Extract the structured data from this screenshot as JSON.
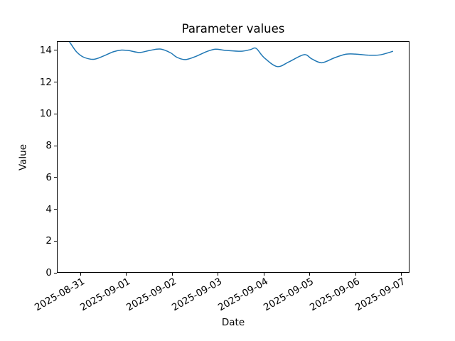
{
  "chart_data": {
    "type": "line",
    "title": "Parameter values",
    "xlabel": "Date",
    "ylabel": "Value",
    "x_tick_labels": [
      "2025-08-31",
      "2025-09-01",
      "2025-09-02",
      "2025-09-03",
      "2025-09-04",
      "2025-09-05",
      "2025-09-06",
      "2025-09-07"
    ],
    "x_ticks_days": [
      0,
      1,
      2,
      3,
      4,
      5,
      6,
      7
    ],
    "x_days_since": "2025-08-31",
    "y_ticks": [
      0,
      2,
      4,
      6,
      8,
      10,
      12,
      14
    ],
    "y_tick_labels": [
      "0",
      "2",
      "4",
      "6",
      "8",
      "10",
      "12",
      "14"
    ],
    "ylim": [
      0,
      14.58
    ],
    "xlim_days": [
      -0.516,
      7.173
    ],
    "grid": false,
    "legend": false,
    "line_color": "#1f77b4",
    "line_width": 1.5,
    "text_color": "#000000",
    "background_color": "#ffffff",
    "series": [
      {
        "name": "parameter-values",
        "x_days": [
          -0.36,
          -0.24,
          -0.1,
          0.05,
          0.27,
          0.5,
          0.7,
          0.88,
          1.05,
          1.28,
          1.5,
          1.73,
          1.95,
          2.1,
          2.28,
          2.5,
          2.75,
          2.94,
          3.15,
          3.5,
          3.7,
          3.83,
          4.0,
          4.29,
          4.55,
          4.88,
          5.05,
          5.27,
          5.55,
          5.8,
          6.0,
          6.3,
          6.55,
          6.82
        ],
        "values": [
          15.05,
          14.52,
          13.95,
          13.62,
          13.48,
          13.7,
          13.95,
          14.06,
          14.03,
          13.91,
          14.04,
          14.13,
          13.9,
          13.6,
          13.46,
          13.65,
          13.97,
          14.12,
          14.05,
          13.99,
          14.09,
          14.17,
          13.6,
          13.02,
          13.32,
          13.77,
          13.5,
          13.26,
          13.58,
          13.8,
          13.81,
          13.74,
          13.76,
          13.98
        ]
      }
    ]
  }
}
